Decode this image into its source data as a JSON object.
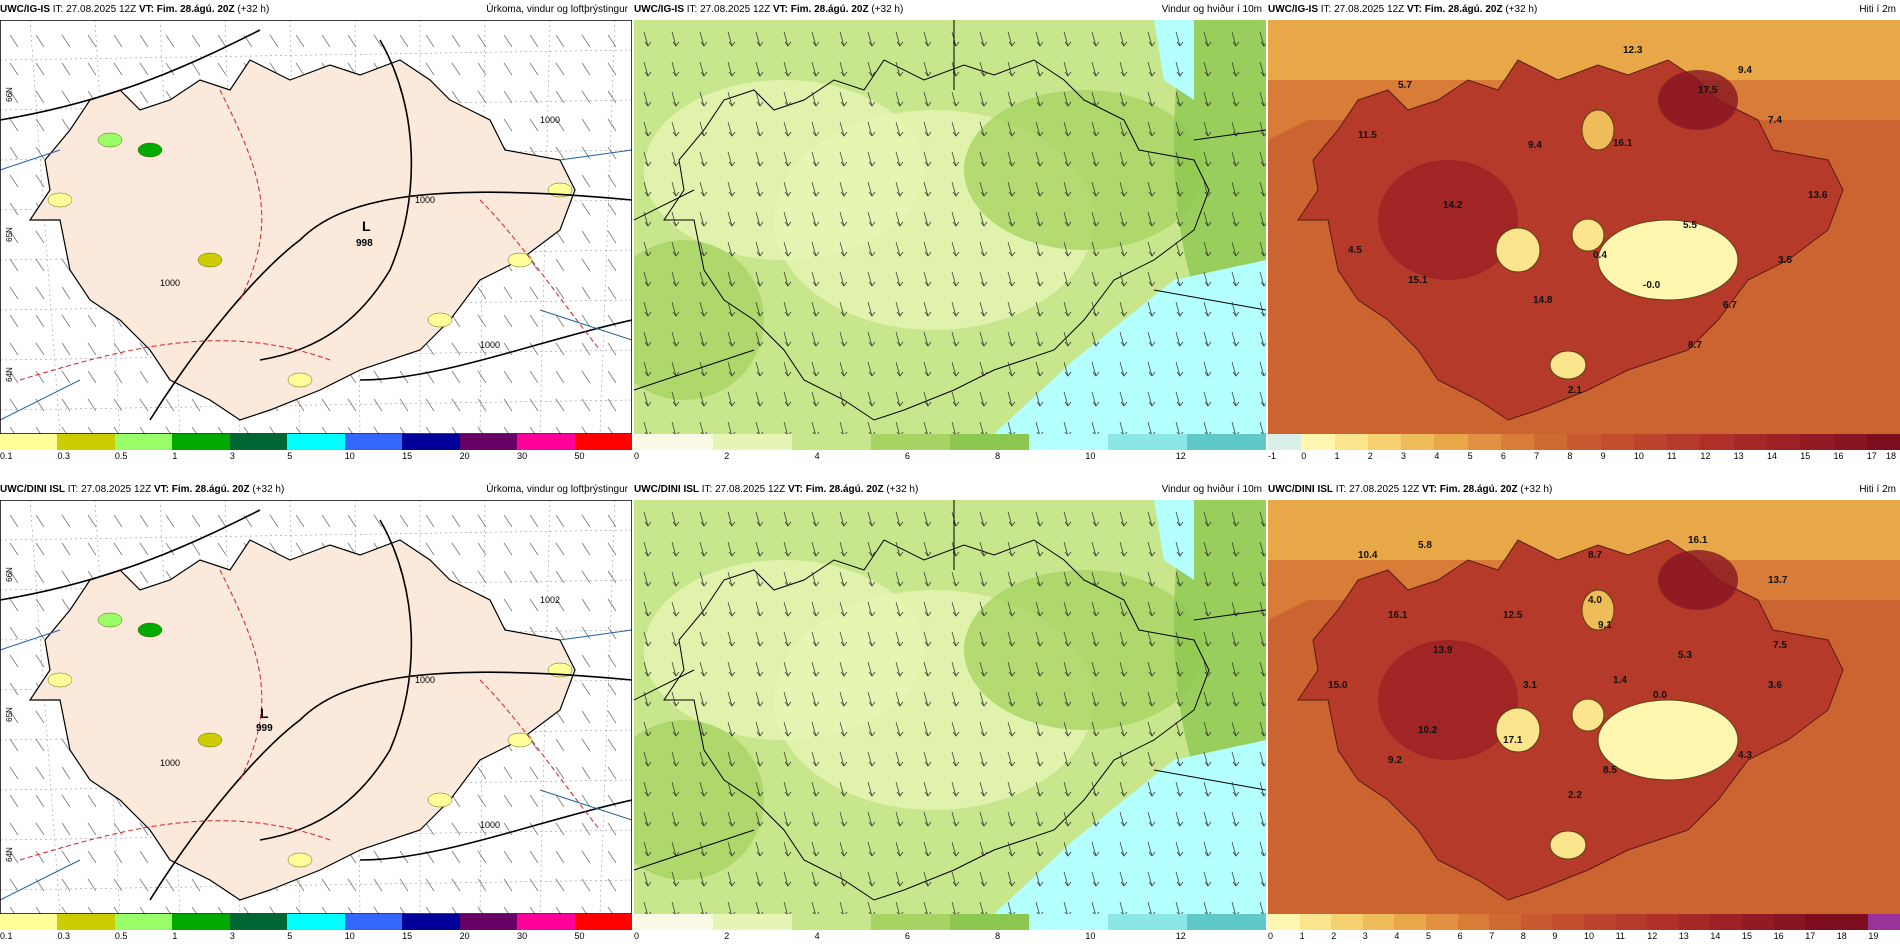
{
  "panels": [
    {
      "id": "p1",
      "model": "UWC/IG-IS",
      "it": "IT: 27.08.2025 12Z",
      "vt": "VT: Fim. 28.ágú. 20Z",
      "offset": "(+32 h)",
      "title": "Úrkoma, vindur og loftþrýstingur",
      "type": "precip",
      "low": {
        "letter": "L",
        "value": "998"
      }
    },
    {
      "id": "p2",
      "model": "UWC/IG-IS",
      "it": "IT: 27.08.2025 12Z",
      "vt": "VT: Fim. 28.ágú. 20Z",
      "offset": "(+32 h)",
      "title": "Vindur og hviður í 10m",
      "type": "wind"
    },
    {
      "id": "p3",
      "model": "UWC/IG-IS",
      "it": "IT: 27.08.2025 12Z",
      "vt": "VT: Fim. 28.ágú. 20Z",
      "offset": "(+32 h)",
      "title": "Hiti í 2m",
      "type": "temp",
      "labels": [
        "12.3",
        "9.4",
        "5.7",
        "17.5",
        "11.5",
        "7.4",
        "9.4",
        "16.1",
        "14.2",
        "13.6",
        "5.5",
        "4.5",
        "0.4",
        "3.5",
        "15.1",
        "-0.0",
        "14.8",
        "6.7",
        "8.7",
        "2.1"
      ]
    },
    {
      "id": "p4",
      "model": "UWC/DINI ISL",
      "it": "IT: 27.08.2025 12Z",
      "vt": "VT: Fim. 28.ágú. 20Z",
      "offset": "(+32 h)",
      "title": "Úrkoma, vindur og loftþrýstingur",
      "type": "precip",
      "low": {
        "letter": "L",
        "value": "999"
      }
    },
    {
      "id": "p5",
      "model": "UWC/DINI ISL",
      "it": "IT: 27.08.2025 12Z",
      "vt": "VT: Fim. 28.ágú. 20Z",
      "offset": "(+32 h)",
      "title": "Vindur og hviður í 10m",
      "type": "wind"
    },
    {
      "id": "p6",
      "model": "UWC/DINI ISL",
      "it": "IT: 27.08.2025 12Z",
      "vt": "VT: Fim. 28.ágú. 20Z",
      "offset": "(+32 h)",
      "title": "Hiti í 2m",
      "type": "temp",
      "labels": [
        "16.1",
        "10.4",
        "5.8",
        "8.7",
        "13.7",
        "16.1",
        "12.5",
        "4.0",
        "9.1",
        "13.9",
        "7.5",
        "5.3",
        "15.0",
        "3.1",
        "1.4",
        "3.6",
        "10.2",
        "0.0",
        "9.2",
        "17.1",
        "4.3",
        "8.5",
        "2.2"
      ]
    }
  ],
  "contour_labels": {
    "p1": [
      "1000",
      "1000",
      "1000",
      "1000"
    ],
    "p4": [
      "1000",
      "1000",
      "1000",
      "1002"
    ]
  },
  "scales": {
    "precip": {
      "colors": [
        "#ffff99",
        "#cccc00",
        "#99ff66",
        "#00aa00",
        "#006633",
        "#00ffff",
        "#3366ff",
        "#000099",
        "#660066",
        "#ff0099",
        "#ff0000"
      ],
      "ticks": [
        "0.1",
        "0.3",
        "0.5",
        "1",
        "3",
        "5",
        "10",
        "15",
        "20",
        "30",
        "50"
      ]
    },
    "wind": {
      "colors": [
        "#fafae6",
        "#e6f5b4",
        "#c8e68c",
        "#a8d464",
        "#8cc850",
        "#b4ffff",
        "#8ce6e6",
        "#5fc8c8"
      ],
      "ticks": [
        "0",
        "2",
        "4",
        "6",
        "8",
        "10",
        "12"
      ]
    },
    "temp_top": {
      "colors": [
        "#d8f0e8",
        "#fff7b0",
        "#fbe58c",
        "#f5d070",
        "#efbc5a",
        "#e8a848",
        "#e09040",
        "#d87c38",
        "#d06a34",
        "#c85a30",
        "#c34e2e",
        "#bd442c",
        "#b53a2a",
        "#ae3028",
        "#a52826",
        "#9c2024",
        "#921a22",
        "#881420",
        "#7e0e1e"
      ],
      "ticks": [
        "-1",
        "0",
        "1",
        "2",
        "3",
        "4",
        "5",
        "6",
        "7",
        "8",
        "9",
        "10",
        "11",
        "12",
        "13",
        "14",
        "15",
        "16",
        "17",
        "18"
      ]
    },
    "temp_bottom": {
      "colors": [
        "#fff7b0",
        "#fbe58c",
        "#f5d070",
        "#efbc5a",
        "#e8a848",
        "#e09040",
        "#d87c38",
        "#d06a34",
        "#c85a30",
        "#c34e2e",
        "#bd442c",
        "#b53a2a",
        "#ae3028",
        "#a52826",
        "#9c2024",
        "#921a22",
        "#881420",
        "#7e0e1e",
        "#7e0e1e",
        "#993399"
      ],
      "ticks": [
        "0",
        "1",
        "2",
        "3",
        "4",
        "5",
        "6",
        "7",
        "8",
        "9",
        "10",
        "11",
        "12",
        "13",
        "14",
        "15",
        "16",
        "17",
        "18",
        "19"
      ]
    }
  },
  "lat_labels": [
    "66N",
    "65N",
    "64N"
  ]
}
